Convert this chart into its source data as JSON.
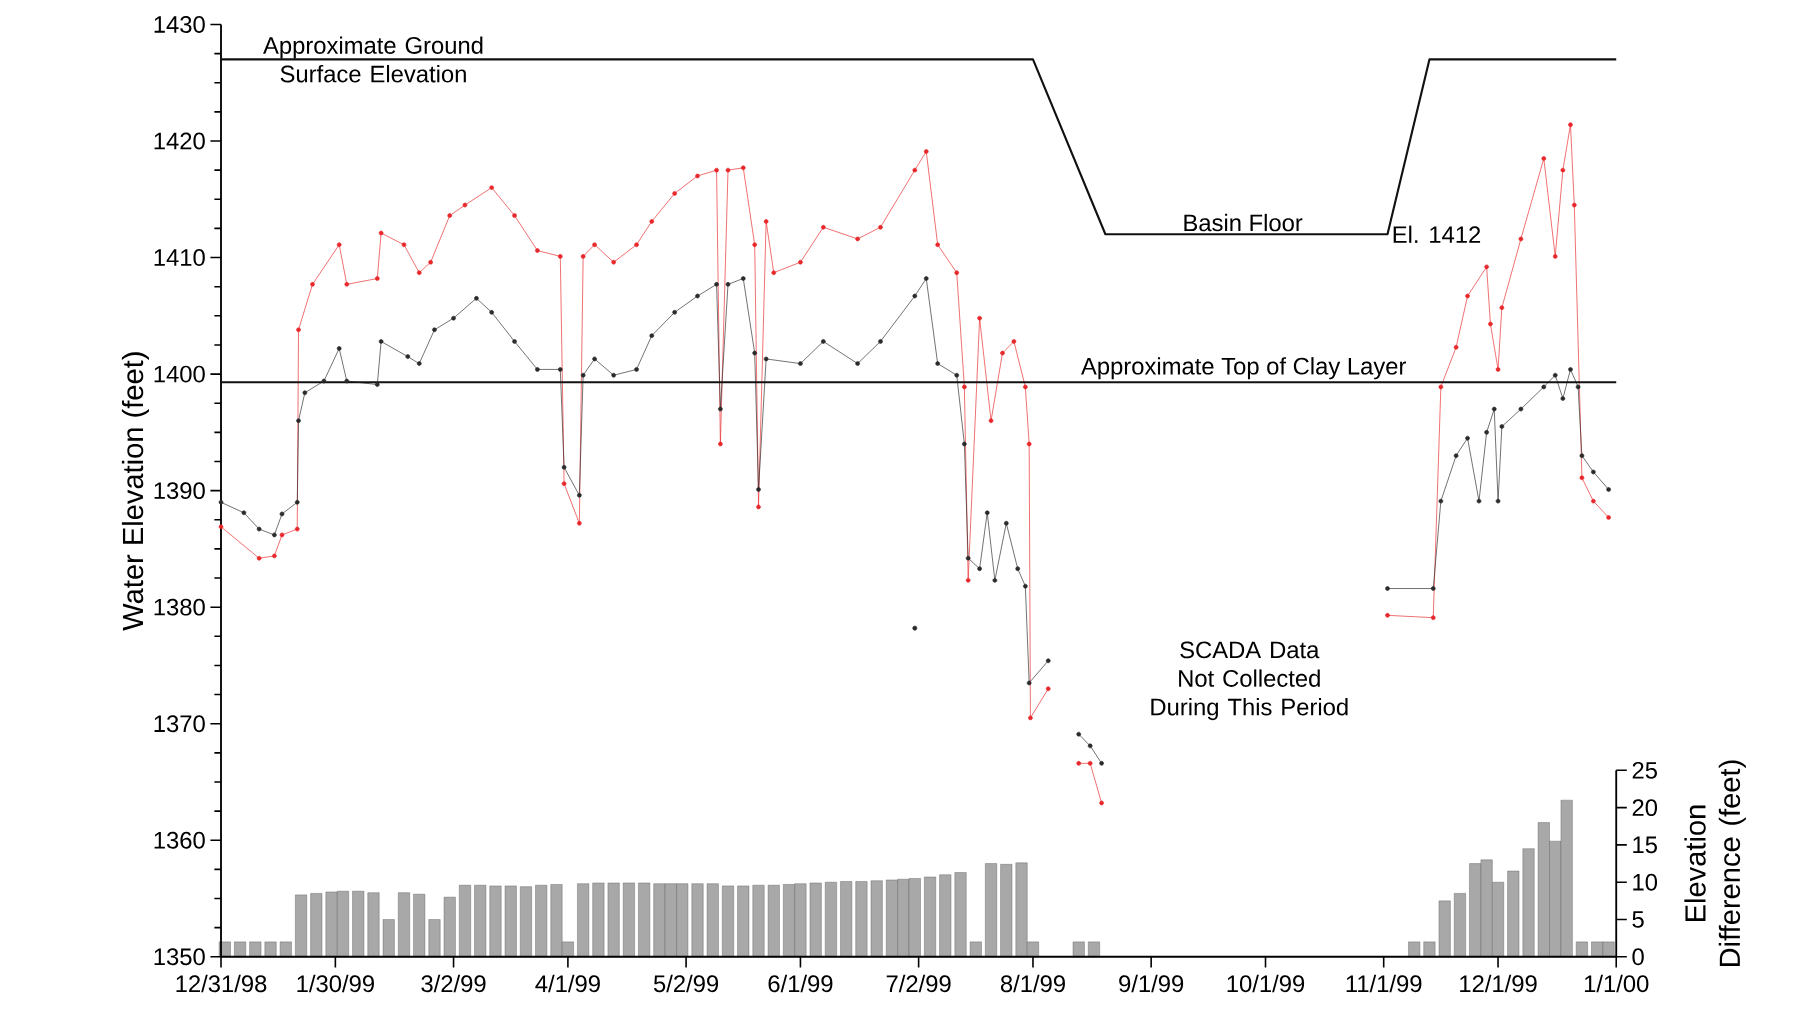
{
  "chart_data": {
    "type": "line",
    "ylabel": "Water Elevation (feet)",
    "y2label": "Elevation Difference (feet)",
    "marker": "circle",
    "xlim": [
      "1998-12-31",
      "2000-01-01"
    ],
    "xticks": [
      {
        "value": "1998-12-31",
        "label": "12/31/98"
      },
      {
        "value": "1999-01-30",
        "label": "1/30/99"
      },
      {
        "value": "1999-03-02",
        "label": "3/2/99"
      },
      {
        "value": "1999-04-01",
        "label": "4/1/99"
      },
      {
        "value": "1999-05-02",
        "label": "5/2/99"
      },
      {
        "value": "1999-06-01",
        "label": "6/1/99"
      },
      {
        "value": "1999-07-02",
        "label": "7/2/99"
      },
      {
        "value": "1999-08-01",
        "label": "8/1/99"
      },
      {
        "value": "1999-09-01",
        "label": "9/1/99"
      },
      {
        "value": "1999-10-01",
        "label": "10/1/99"
      },
      {
        "value": "1999-11-01",
        "label": "11/1/99"
      },
      {
        "value": "1999-12-01",
        "label": "12/1/99"
      },
      {
        "value": "2000-01-01",
        "label": "1/1/00"
      }
    ],
    "ylim": [
      1350,
      1430
    ],
    "yticks": [
      1350,
      1360,
      1370,
      1380,
      1390,
      1400,
      1410,
      1420,
      1430
    ],
    "y2lim": [
      0,
      125
    ],
    "y2ticks": [
      0,
      5,
      10,
      15,
      20,
      25
    ],
    "series": [
      {
        "type": "bar",
        "axis": "y2",
        "color": "#a8a8a8",
        "x": [
          "1999-01-01",
          "1999-01-05",
          "1999-01-09",
          "1999-01-13",
          "1999-01-17",
          "1999-01-21",
          "1999-01-25",
          "1999-01-29",
          "1999-02-01",
          "1999-02-05",
          "1999-02-09",
          "1999-02-13",
          "1999-02-17",
          "1999-02-21",
          "1999-02-25",
          "1999-03-01",
          "1999-03-05",
          "1999-03-09",
          "1999-03-13",
          "1999-03-17",
          "1999-03-21",
          "1999-03-25",
          "1999-03-29",
          "1999-04-01",
          "1999-04-05",
          "1999-04-09",
          "1999-04-13",
          "1999-04-17",
          "1999-04-21",
          "1999-04-25",
          "1999-04-28",
          "1999-05-01",
          "1999-05-05",
          "1999-05-09",
          "1999-05-13",
          "1999-05-17",
          "1999-05-21",
          "1999-05-25",
          "1999-05-29",
          "1999-06-01",
          "1999-06-05",
          "1999-06-09",
          "1999-06-13",
          "1999-06-17",
          "1999-06-21",
          "1999-06-25",
          "1999-06-28",
          "1999-07-01",
          "1999-07-05",
          "1999-07-09",
          "1999-07-13",
          "1999-07-17",
          "1999-07-21",
          "1999-07-25",
          "1999-07-29",
          "1999-08-01",
          "1999-08-13",
          "1999-08-17",
          "1999-11-09",
          "1999-11-13",
          "1999-11-17",
          "1999-11-21",
          "1999-11-25",
          "1999-11-28",
          "1999-12-01",
          "1999-12-05",
          "1999-12-09",
          "1999-12-13",
          "1999-12-16",
          "1999-12-19",
          "1999-12-23",
          "1999-12-27",
          "1999-12-30"
        ],
        "values": [
          2.0,
          2.0,
          2.0,
          2.0,
          2.0,
          8.3,
          8.5,
          8.7,
          8.8,
          8.8,
          8.6,
          5.0,
          8.6,
          8.4,
          5.0,
          8.0,
          9.6,
          9.6,
          9.5,
          9.5,
          9.4,
          9.6,
          9.7,
          2.0,
          9.8,
          9.9,
          9.9,
          9.9,
          9.9,
          9.8,
          9.8,
          9.8,
          9.8,
          9.8,
          9.5,
          9.5,
          9.6,
          9.6,
          9.7,
          9.8,
          9.9,
          10.0,
          10.1,
          10.1,
          10.2,
          10.3,
          10.4,
          10.5,
          10.7,
          11.0,
          11.3,
          2.0,
          12.5,
          12.4,
          12.6,
          2.0,
          2.0,
          2.0,
          2.0,
          2.0,
          7.5,
          8.5,
          12.5,
          13.0,
          10.0,
          11.5,
          14.5,
          18.0,
          15.5,
          21.0,
          2.0,
          2.0,
          2.0
        ]
      },
      {
        "color": "#111111",
        "marker": "none",
        "x": [
          "1998-12-31",
          "1999-08-01",
          "1999-08-20",
          "1999-11-02",
          "1999-11-13",
          "2000-01-01"
        ],
        "values": [
          1427,
          1427,
          1412,
          1412,
          1427,
          1427
        ]
      },
      {
        "color": "#e8272a",
        "x": [
          "1998-12-31",
          "1999-01-10",
          "1999-01-14",
          "1999-01-16",
          "1999-01-20",
          "1999-01-20T08:00",
          "1999-01-24",
          "1999-01-31",
          "1999-02-02",
          "1999-02-10",
          "1999-02-11",
          "1999-02-17",
          "1999-02-21",
          "1999-02-24",
          "1999-03-01",
          "1999-03-05",
          "1999-03-12",
          "1999-03-18",
          "1999-03-24",
          "1999-03-30",
          "1999-03-31",
          "1999-04-04",
          "1999-04-05",
          "1999-04-08",
          "1999-04-13",
          "1999-04-19",
          "1999-04-23",
          "1999-04-29",
          "1999-05-05",
          "1999-05-10",
          "1999-05-11",
          "1999-05-13",
          "1999-05-17",
          "1999-05-20",
          "1999-05-21",
          "1999-05-23",
          "1999-05-25",
          "1999-06-01",
          "1999-06-07",
          "1999-06-16",
          "1999-06-22",
          "1999-07-01",
          "1999-07-04",
          "1999-07-07",
          "1999-07-12",
          "1999-07-14",
          "1999-07-15",
          "1999-07-18",
          "1999-07-21",
          "1999-07-24",
          "1999-07-27",
          "1999-07-30",
          "1999-07-31",
          "1999-07-31T08:00",
          "1999-08-05",
          "1999-08-10",
          "1999-08-13",
          "1999-08-16",
          "1999-08-19",
          "1999-09-30",
          "1999-11-02",
          "1999-11-14",
          "1999-11-16",
          "1999-11-20",
          "1999-11-23",
          "1999-11-28",
          "1999-11-29",
          "1999-12-01",
          "1999-12-02",
          "1999-12-07",
          "1999-12-13",
          "1999-12-16",
          "1999-12-18",
          "1999-12-20",
          "1999-12-21",
          "1999-12-23",
          "1999-12-26",
          "1999-12-30"
        ],
        "values": [
          1386.9,
          1384.2,
          1384.4,
          1386.2,
          1386.7,
          1403.8,
          1407.7,
          1411.1,
          1407.7,
          1408.2,
          1412.1,
          1411.1,
          1408.7,
          1409.6,
          1413.6,
          1414.5,
          1416,
          1413.6,
          1410.6,
          1410.1,
          1390.6,
          1387.2,
          1410.1,
          1411.1,
          1409.6,
          1411.1,
          1413.1,
          1415.5,
          1417,
          1417.5,
          1394,
          1417.5,
          1417.7,
          1411.1,
          1388.6,
          1413.1,
          1408.7,
          1409.6,
          1412.6,
          1411.6,
          1412.6,
          1417.5,
          1419.1,
          1411.1,
          1408.7,
          1398.9,
          1382.3,
          1404.8,
          1396,
          1401.8,
          1402.8,
          1398.9,
          1394,
          1370.5,
          1373,
          null,
          1366.6,
          1366.6,
          1363.2,
          null,
          1379.3,
          1379.1,
          1398.9,
          1402.3,
          1406.7,
          1409.2,
          1404.3,
          1400.4,
          1405.7,
          1411.6,
          1418.5,
          1410.1,
          1417.5,
          1421.4,
          1414.5,
          1391.1,
          1389.1,
          1387.7
        ]
      },
      {
        "color": "#2b2b2b",
        "x": [
          "1998-12-31",
          "1999-01-06",
          "1999-01-10",
          "1999-01-14",
          "1999-01-16",
          "1999-01-20",
          "1999-01-20T08:00",
          "1999-01-22",
          "1999-01-27",
          "1999-01-31",
          "1999-02-02",
          "1999-02-10",
          "1999-02-11",
          "1999-02-18",
          "1999-02-21",
          "1999-02-25",
          "1999-03-02",
          "1999-03-08",
          "1999-03-12",
          "1999-03-18",
          "1999-03-24",
          "1999-03-30",
          "1999-03-31",
          "1999-04-04",
          "1999-04-05",
          "1999-04-08",
          "1999-04-13",
          "1999-04-19",
          "1999-04-23",
          "1999-04-29",
          "1999-05-05",
          "1999-05-10",
          "1999-05-11",
          "1999-05-13",
          "1999-05-17",
          "1999-05-20",
          "1999-05-21",
          "1999-05-23",
          "1999-06-01",
          "1999-06-07",
          "1999-06-16",
          "1999-06-22",
          "1999-07-01",
          "1999-07-04",
          "1999-07-07",
          "1999-07-12",
          "1999-07-14",
          "1999-07-15",
          "1999-07-18",
          "1999-07-20",
          "1999-07-22",
          "1999-07-25",
          "1999-07-28",
          "1999-07-30",
          "1999-07-31",
          "1999-08-05",
          "1999-08-10",
          "1999-08-13",
          "1999-08-16",
          "1999-08-19",
          "1999-09-30",
          "1999-11-02",
          "1999-11-14",
          "1999-11-16",
          "1999-11-20",
          "1999-11-23",
          "1999-11-26",
          "1999-11-28",
          "1999-11-30",
          "1999-12-01",
          "1999-12-02",
          "1999-12-07",
          "1999-12-13",
          "1999-12-16",
          "1999-12-18",
          "1999-12-20",
          "1999-12-22",
          "1999-12-23",
          "1999-12-26",
          "1999-12-30"
        ],
        "values": [
          1389.0,
          1388.1,
          1386.7,
          1386.2,
          1388.0,
          1389.0,
          1396,
          1398.4,
          1399.4,
          1402.2,
          1399.4,
          1399.1,
          1402.8,
          1401.5,
          1400.9,
          1403.8,
          1404.8,
          1406.5,
          1405.3,
          1402.8,
          1400.4,
          1400.4,
          1392,
          1389.6,
          1399.9,
          1401.3,
          1399.9,
          1400.4,
          1403.3,
          1405.3,
          1406.7,
          1407.7,
          1397,
          1407.7,
          1408.2,
          1401.8,
          1390.1,
          1401.3,
          1400.9,
          1402.8,
          1400.9,
          1402.8,
          1406.7,
          1408.2,
          1400.9,
          1399.9,
          1394,
          1384.2,
          1383.3,
          1388.1,
          1382.3,
          1387.2,
          1383.3,
          1381.8,
          1373.5,
          1375.4,
          null,
          1369.1,
          1368.1,
          1366.6,
          null,
          1381.6,
          1381.6,
          1389.1,
          1393,
          1394.5,
          1389.1,
          1395,
          1397,
          1389.1,
          1395.5,
          1397,
          1398.9,
          1399.9,
          1397.9,
          1400.4,
          1398.9,
          1393,
          1391.6,
          1390.1
        ]
      },
      {
        "type": "scatter",
        "color": "#2b2b2b",
        "x": [
          "1999-07-01"
        ],
        "values": [
          1378.2
        ]
      }
    ],
    "ref_lines": [
      {
        "axis": "y",
        "value": 1399.3,
        "label": "Approximate Top of Clay Layer",
        "color": "#111111"
      }
    ],
    "annotations": [
      {
        "text": "Approximate Ground Surface Elevation",
        "x": "1999-02-09",
        "y": 1427
      },
      {
        "text": "Basin Floor",
        "x": "1999-09-25",
        "y": 1412
      },
      {
        "text": "El. 1412",
        "x": "1999-11-02",
        "y": 1412
      },
      "SCADA Data Not Collected During This Period"
    ]
  }
}
